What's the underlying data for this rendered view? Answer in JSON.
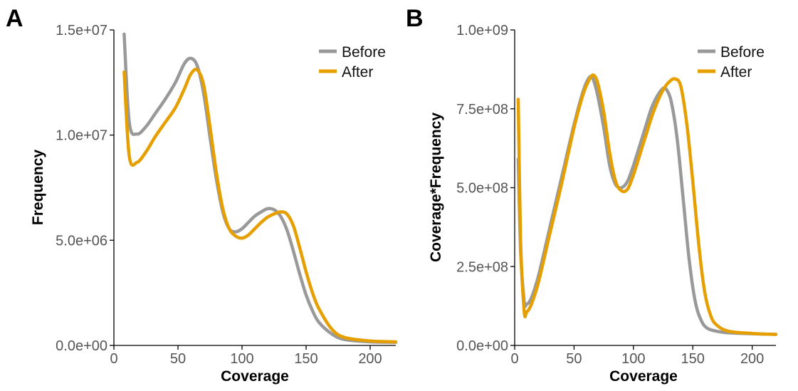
{
  "chart_data": [
    {
      "panel_label": "A",
      "type": "line",
      "xlabel": "Coverage",
      "ylabel": "Frequency",
      "xlim": [
        0,
        220
      ],
      "ylim": [
        0,
        15000000
      ],
      "x_ticks": [
        0,
        50,
        100,
        150,
        200
      ],
      "x_tick_labels": [
        "0",
        "50",
        "100",
        "150",
        "200"
      ],
      "y_ticks": [
        0,
        5000000,
        10000000,
        15000000
      ],
      "y_tick_labels": [
        "0.0e+00",
        "5.0e+06",
        "1.0e+07",
        "1.5e+07"
      ],
      "legend_position": "top-right",
      "series": [
        {
          "name": "Before",
          "color": "#999999",
          "x": [
            8,
            12,
            18,
            25,
            32,
            40,
            48,
            55,
            60,
            65,
            70,
            75,
            80,
            85,
            90,
            95,
            100,
            105,
            110,
            115,
            120,
            125,
            130,
            135,
            140,
            145,
            150,
            155,
            160,
            170,
            180,
            200,
            220
          ],
          "y": [
            14800000,
            10600000,
            10050000,
            10400000,
            11000000,
            11700000,
            12500000,
            13400000,
            13650000,
            13300000,
            12000000,
            9900000,
            7900000,
            6350000,
            5550000,
            5400000,
            5550000,
            5850000,
            6150000,
            6350000,
            6500000,
            6450000,
            6150000,
            5500000,
            4500000,
            3400000,
            2400000,
            1650000,
            1100000,
            550000,
            280000,
            170000,
            150000
          ]
        },
        {
          "name": "After",
          "color": "#E69F00",
          "x": [
            8,
            12,
            18,
            25,
            32,
            40,
            48,
            55,
            60,
            65,
            70,
            75,
            80,
            85,
            90,
            95,
            100,
            105,
            110,
            115,
            120,
            125,
            130,
            135,
            140,
            145,
            150,
            155,
            160,
            170,
            180,
            200,
            220
          ],
          "y": [
            13000000,
            9000000,
            8700000,
            9200000,
            9900000,
            10600000,
            11300000,
            12200000,
            12900000,
            13100000,
            12400000,
            10400000,
            8200000,
            6500000,
            5550000,
            5200000,
            5100000,
            5250000,
            5550000,
            5850000,
            6100000,
            6250000,
            6350000,
            6250000,
            5700000,
            4650000,
            3500000,
            2500000,
            1750000,
            780000,
            380000,
            210000,
            170000
          ]
        }
      ]
    },
    {
      "panel_label": "B",
      "type": "line",
      "xlabel": "Coverage",
      "ylabel": "Coverage*Frequency",
      "xlim": [
        0,
        220
      ],
      "ylim": [
        0,
        1000000000
      ],
      "x_ticks": [
        0,
        50,
        100,
        150,
        200
      ],
      "x_tick_labels": [
        "0",
        "50",
        "100",
        "150",
        "200"
      ],
      "y_ticks": [
        0,
        250000000,
        500000000,
        750000000,
        1000000000
      ],
      "y_tick_labels": [
        "0.0e+00",
        "2.5e+08",
        "5.0e+08",
        "7.5e+08",
        "1.0e+09"
      ],
      "legend_position": "top-right",
      "series": [
        {
          "name": "Before",
          "color": "#999999",
          "x": [
            3,
            5,
            8,
            10,
            14,
            20,
            30,
            40,
            50,
            58,
            63,
            66,
            70,
            75,
            80,
            85,
            90,
            95,
            100,
            105,
            110,
            115,
            120,
            125,
            128,
            132,
            137,
            142,
            147,
            152,
            157,
            162,
            170,
            180,
            200,
            220
          ],
          "y": [
            590000000,
            300000000,
            140000000,
            130000000,
            150000000,
            220000000,
            380000000,
            540000000,
            700000000,
            810000000,
            850000000,
            845000000,
            790000000,
            690000000,
            570000000,
            510000000,
            500000000,
            520000000,
            570000000,
            630000000,
            690000000,
            750000000,
            790000000,
            815000000,
            810000000,
            770000000,
            650000000,
            460000000,
            270000000,
            140000000,
            80000000,
            55000000,
            45000000,
            40000000,
            37000000,
            35000000
          ]
        },
        {
          "name": "After",
          "color": "#E69F00",
          "x": [
            3,
            5,
            8,
            10,
            14,
            20,
            30,
            40,
            50,
            58,
            64,
            67,
            70,
            75,
            80,
            85,
            90,
            95,
            100,
            105,
            110,
            115,
            120,
            125,
            130,
            135,
            140,
            145,
            150,
            155,
            160,
            165,
            170,
            180,
            200,
            220
          ],
          "y": [
            780000000,
            330000000,
            110000000,
            105000000,
            130000000,
            200000000,
            360000000,
            520000000,
            690000000,
            800000000,
            850000000,
            855000000,
            830000000,
            740000000,
            610000000,
            520000000,
            490000000,
            495000000,
            540000000,
            600000000,
            660000000,
            720000000,
            770000000,
            810000000,
            835000000,
            845000000,
            820000000,
            700000000,
            520000000,
            320000000,
            170000000,
            95000000,
            65000000,
            45000000,
            38000000,
            35000000
          ]
        }
      ]
    }
  ]
}
